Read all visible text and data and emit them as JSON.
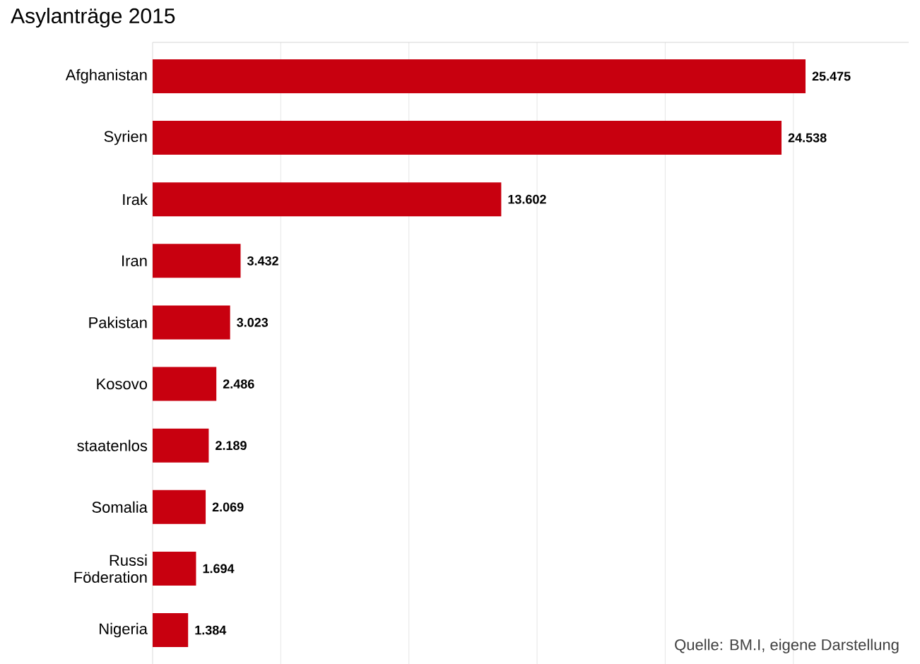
{
  "chart_data": {
    "type": "bar",
    "orientation": "horizontal",
    "title": "Asylanträge 2015",
    "categories": [
      "Afghanistan",
      "Syrien",
      "Irak",
      "Iran",
      "Pakistan",
      "Kosovo",
      "staatenlos",
      "Somalia",
      "Russi Föderation",
      "Nigeria"
    ],
    "values": [
      25475,
      24538,
      13602,
      3432,
      3023,
      2486,
      2189,
      2069,
      1694,
      1384
    ],
    "value_labels": [
      "25.475",
      "24.538",
      "13.602",
      "3.432",
      "3.023",
      "2.486",
      "2.189",
      "2.069",
      "1.694",
      "1.384"
    ],
    "color": "#c8000f",
    "xlim": [
      0,
      29500
    ],
    "xticks": [
      {
        "value": 5000,
        "label": null
      },
      {
        "value": 10000,
        "label": null
      },
      {
        "value": 15000,
        "label": null
      },
      {
        "value": 20000,
        "label": null
      },
      {
        "value": 25000,
        "label": null
      }
    ],
    "grid": "x",
    "tick_labels": "y",
    "annotations": [
      "Quelle: BM.I, eigene Darstellung"
    ]
  }
}
